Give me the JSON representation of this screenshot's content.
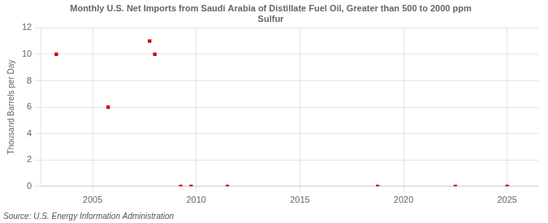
{
  "chart_data": {
    "type": "scatter",
    "title": "Monthly U.S. Net Imports from Saudi Arabia of Distillate Fuel Oil, Greater than 500 to 2000 ppm\nSulfur",
    "ylabel": "Thousand Barrels per Day",
    "source": "Source: U.S. Energy Information Administration",
    "x": [
      2003.25,
      2005.75,
      2007.75,
      2008.0,
      2009.25,
      2009.75,
      2011.5,
      2018.75,
      2022.5,
      2025.0
    ],
    "values": [
      10,
      6,
      11,
      10,
      0,
      0,
      0,
      0,
      0,
      0
    ],
    "color": "#cc0000",
    "marker": "square",
    "xlim": [
      2002.5,
      2026.5
    ],
    "ylim": [
      0,
      12
    ],
    "xticks": [
      2005,
      2010,
      2015,
      2020,
      2025
    ],
    "yticks": [
      0,
      2,
      4,
      6,
      8,
      10,
      12
    ],
    "grid": true
  }
}
